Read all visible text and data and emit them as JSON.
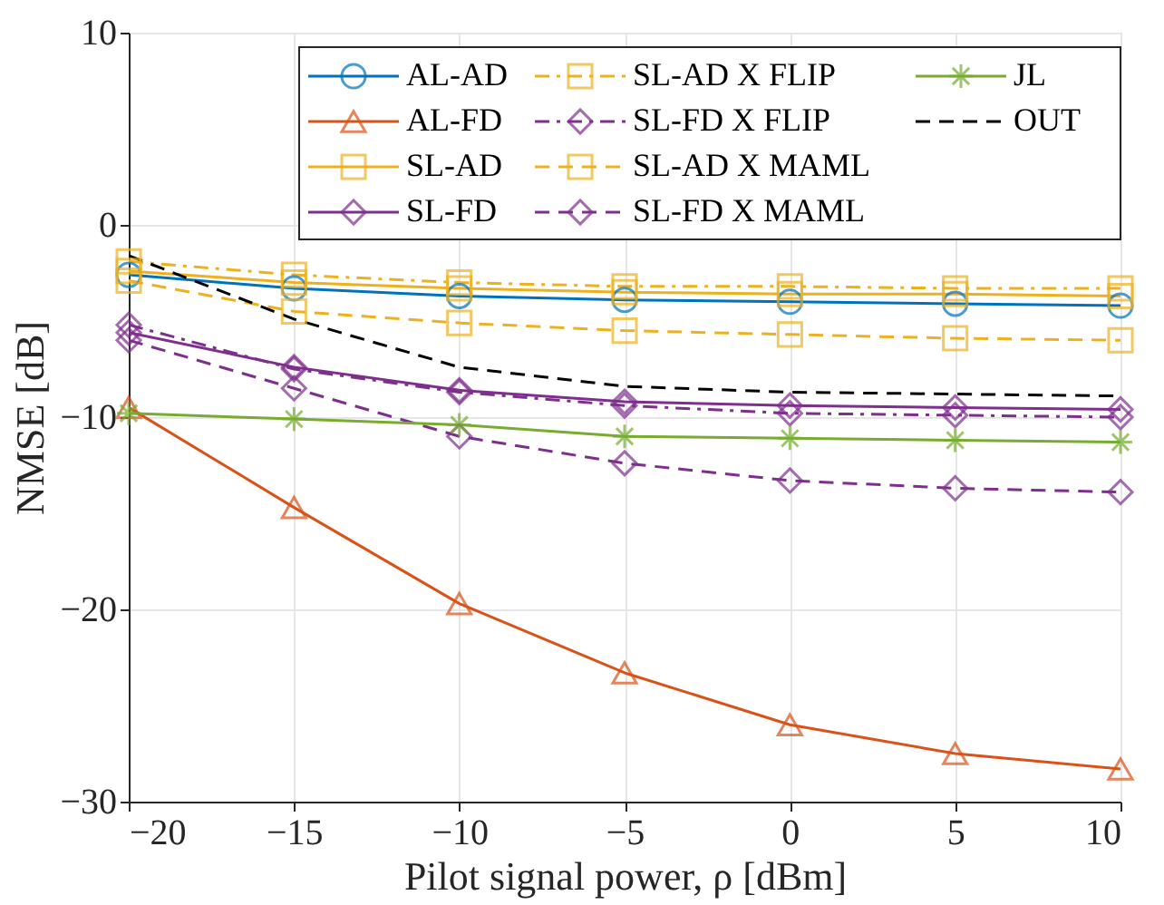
{
  "chart_data": {
    "type": "line",
    "xlabel": "Pilot signal power, ρ [dBm]",
    "ylabel": "NMSE [dB]",
    "x": [
      -20,
      -15,
      -10,
      -5,
      0,
      5,
      10
    ],
    "xlim": [
      -20,
      10
    ],
    "xticks": [
      -20,
      -15,
      -10,
      -5,
      0,
      5,
      10
    ],
    "ylim": [
      -30,
      10
    ],
    "yticks": [
      -30,
      -20,
      -10,
      0,
      10
    ],
    "grid": true,
    "legend": "top right",
    "series": [
      {
        "name": "AL-AD",
        "color": "#0072bd",
        "marker": "circle",
        "line_style": "solid",
        "values": [
          -2.6,
          -3.3,
          -3.7,
          -3.9,
          -4.0,
          -4.1,
          -4.2
        ]
      },
      {
        "name": "AL-FD",
        "color": "#d95319",
        "marker": "triangle",
        "line_style": "solid",
        "values": [
          -9.5,
          -14.7,
          -19.7,
          -23.3,
          -26.0,
          -27.5,
          -28.3
        ]
      },
      {
        "name": "SL-AD",
        "color": "#edb120",
        "marker": "square",
        "line_style": "solid",
        "values": [
          -2.4,
          -3.0,
          -3.3,
          -3.5,
          -3.6,
          -3.6,
          -3.7
        ]
      },
      {
        "name": "SL-FD",
        "color": "#7e2f8e",
        "marker": "diamond",
        "line_style": "solid",
        "values": [
          -5.6,
          -7.4,
          -8.6,
          -9.2,
          -9.4,
          -9.5,
          -9.6
        ]
      },
      {
        "name": "SL-AD X FLIP",
        "color": "#edb120",
        "marker": "square",
        "line_style": "dashdot",
        "values": [
          -1.9,
          -2.6,
          -3.0,
          -3.2,
          -3.2,
          -3.3,
          -3.3
        ]
      },
      {
        "name": "SL-FD X FLIP",
        "color": "#7e2f8e",
        "marker": "diamond",
        "line_style": "dashdot",
        "values": [
          -5.2,
          -7.5,
          -8.7,
          -9.4,
          -9.8,
          -9.9,
          -10.0
        ]
      },
      {
        "name": "SL-AD X MAML",
        "color": "#edb120",
        "marker": "square",
        "line_style": "dashed",
        "values": [
          -2.9,
          -4.5,
          -5.1,
          -5.5,
          -5.7,
          -5.9,
          -6.0
        ]
      },
      {
        "name": "SL-FD X MAML",
        "color": "#7e2f8e",
        "marker": "diamond",
        "line_style": "dashed",
        "values": [
          -6.0,
          -8.5,
          -11.0,
          -12.4,
          -13.3,
          -13.7,
          -13.9
        ]
      },
      {
        "name": "JL",
        "color": "#77ac30",
        "marker": "cross",
        "line_style": "solid",
        "values": [
          -9.8,
          -10.1,
          -10.4,
          -11.0,
          -11.1,
          -11.2,
          -11.3
        ]
      },
      {
        "name": "OUT",
        "color": "#000000",
        "marker": "none",
        "line_style": "dashed",
        "values": [
          -1.6,
          -4.9,
          -7.4,
          -8.4,
          -8.7,
          -8.8,
          -8.9
        ]
      }
    ]
  }
}
